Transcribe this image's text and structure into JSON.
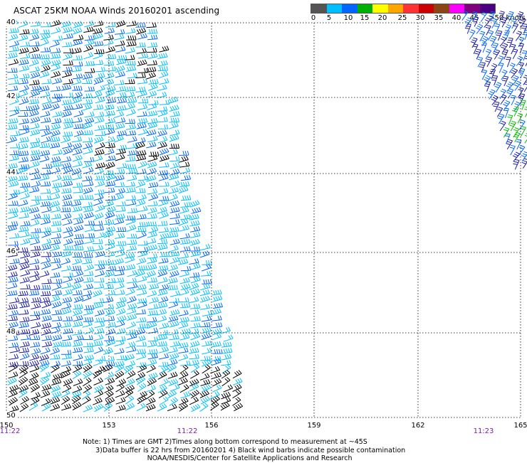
{
  "title": "ASCAT 25KM NOAA Winds 20160201 ascending",
  "colorbar": {
    "labels": [
      "0",
      "5",
      "10",
      "15",
      "20",
      "25",
      "30",
      "35",
      "40",
      "45",
      ">50 knots"
    ],
    "colors": [
      "#555555",
      "#00bfff",
      "#0066ff",
      "#00b000",
      "#ffff00",
      "#ffa500",
      "#ff3333",
      "#cc0000",
      "#8b4513",
      "#ff00ff",
      "#800080",
      "#4b0082"
    ]
  },
  "map": {
    "lat_labels": [
      "40",
      "42",
      "44",
      "46",
      "48",
      "50"
    ],
    "lon_labels": [
      "150",
      "153",
      "156",
      "159",
      "162",
      "165"
    ],
    "time_labels": [
      "11:22",
      "11:22",
      "11:23"
    ],
    "barb_colors": {
      "contaminated": "#000000",
      "low": "#00bfff",
      "mid": "#0066ff",
      "high": "#1a1aa6",
      "green": "#00c000"
    }
  },
  "notes": [
    "Note: 1) Times are GMT 2)Times along bottom correspond to measurement at ~45S",
    "      3)Data buffer is 22 hrs from 20160201 4) Black wind barbs indicate possible contamination",
    "                              NOAA/NESDIS/Center for Satellite Applications and Research"
  ]
}
